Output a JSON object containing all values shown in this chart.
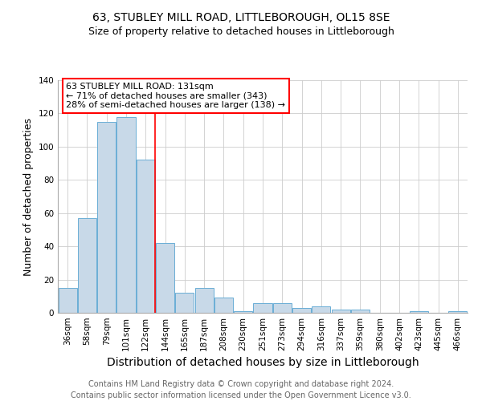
{
  "title": "63, STUBLEY MILL ROAD, LITTLEBOROUGH, OL15 8SE",
  "subtitle": "Size of property relative to detached houses in Littleborough",
  "xlabel": "Distribution of detached houses by size in Littleborough",
  "ylabel": "Number of detached properties",
  "footer1": "Contains HM Land Registry data © Crown copyright and database right 2024.",
  "footer2": "Contains public sector information licensed under the Open Government Licence v3.0.",
  "categories": [
    "36sqm",
    "58sqm",
    "79sqm",
    "101sqm",
    "122sqm",
    "144sqm",
    "165sqm",
    "187sqm",
    "208sqm",
    "230sqm",
    "251sqm",
    "273sqm",
    "294sqm",
    "316sqm",
    "337sqm",
    "359sqm",
    "380sqm",
    "402sqm",
    "423sqm",
    "445sqm",
    "466sqm"
  ],
  "values": [
    15,
    57,
    115,
    118,
    92,
    42,
    12,
    15,
    9,
    1,
    6,
    6,
    3,
    4,
    2,
    2,
    0,
    0,
    1,
    0,
    1
  ],
  "bar_color": "#c8d9e8",
  "bar_edge_color": "#6aaed6",
  "annotation_line1": "63 STUBLEY MILL ROAD: 131sqm",
  "annotation_line2": "← 71% of detached houses are smaller (343)",
  "annotation_line3": "28% of semi-detached houses are larger (138) →",
  "vline_x_index": 4.5,
  "ylim": [
    0,
    140
  ],
  "yticks": [
    0,
    20,
    40,
    60,
    80,
    100,
    120,
    140
  ],
  "background_color": "#ffffff",
  "grid_color": "#cccccc",
  "title_fontsize": 10,
  "subtitle_fontsize": 9,
  "xlabel_fontsize": 10,
  "ylabel_fontsize": 9,
  "tick_fontsize": 7.5,
  "annotation_fontsize": 8,
  "footer_fontsize": 7
}
